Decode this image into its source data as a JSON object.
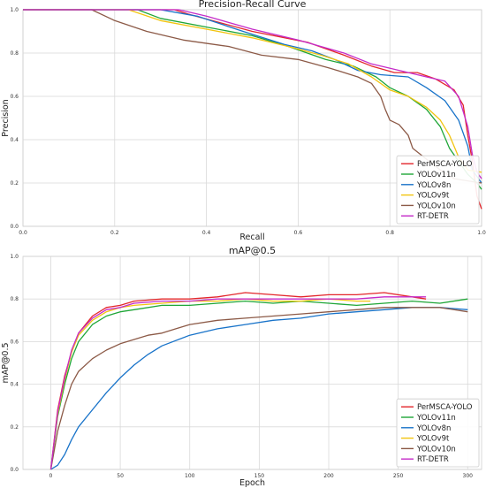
{
  "colors": {
    "PerMSCA-YOLO": "#e3262b",
    "YOLOv11n": "#1fa637",
    "YOLOv8n": "#1873c9",
    "YOLOv9t": "#f2c40f",
    "YOLOv10n": "#8c5a47",
    "RT-DETR": "#c52bc9"
  },
  "chart_data": [
    {
      "type": "line",
      "title": "Precision-Recall Curve",
      "xlabel": "Recall",
      "ylabel": "Precision",
      "xlim": [
        0,
        1
      ],
      "ylim": [
        0,
        1
      ],
      "xticks": [
        "0.0",
        "0.2",
        "0.4",
        "0.6",
        "0.8",
        "1.0"
      ],
      "yticks": [
        "0.0",
        "0.2",
        "0.4",
        "0.6",
        "0.8",
        "1.0"
      ],
      "grid": true,
      "legend": "bottom-right",
      "series": [
        {
          "name": "PerMSCA-YOLO",
          "points": [
            [
              0.0,
              1.0
            ],
            [
              0.33,
              1.0
            ],
            [
              0.36,
              0.98
            ],
            [
              0.5,
              0.9
            ],
            [
              0.62,
              0.85
            ],
            [
              0.7,
              0.79
            ],
            [
              0.76,
              0.74
            ],
            [
              0.81,
              0.71
            ],
            [
              0.86,
              0.71
            ],
            [
              0.9,
              0.68
            ],
            [
              0.94,
              0.63
            ],
            [
              0.96,
              0.56
            ],
            [
              0.97,
              0.42
            ],
            [
              0.98,
              0.3
            ],
            [
              0.99,
              0.14
            ],
            [
              1.0,
              0.08
            ]
          ]
        },
        {
          "name": "YOLOv11n",
          "points": [
            [
              0.0,
              1.0
            ],
            [
              0.25,
              1.0
            ],
            [
              0.3,
              0.96
            ],
            [
              0.4,
              0.92
            ],
            [
              0.5,
              0.88
            ],
            [
              0.58,
              0.83
            ],
            [
              0.66,
              0.77
            ],
            [
              0.72,
              0.74
            ],
            [
              0.77,
              0.69
            ],
            [
              0.8,
              0.64
            ],
            [
              0.84,
              0.6
            ],
            [
              0.88,
              0.54
            ],
            [
              0.91,
              0.46
            ],
            [
              0.93,
              0.36
            ],
            [
              0.95,
              0.3
            ],
            [
              0.97,
              0.24
            ],
            [
              0.99,
              0.2
            ],
            [
              1.0,
              0.17
            ]
          ]
        },
        {
          "name": "YOLOv8n",
          "points": [
            [
              0.0,
              1.0
            ],
            [
              0.3,
              1.0
            ],
            [
              0.38,
              0.97
            ],
            [
              0.48,
              0.9
            ],
            [
              0.57,
              0.84
            ],
            [
              0.63,
              0.81
            ],
            [
              0.68,
              0.77
            ],
            [
              0.73,
              0.72
            ],
            [
              0.78,
              0.7
            ],
            [
              0.84,
              0.69
            ],
            [
              0.88,
              0.64
            ],
            [
              0.92,
              0.58
            ],
            [
              0.95,
              0.49
            ],
            [
              0.97,
              0.37
            ],
            [
              0.98,
              0.26
            ],
            [
              1.0,
              0.2
            ]
          ]
        },
        {
          "name": "YOLOv9t",
          "points": [
            [
              0.0,
              1.0
            ],
            [
              0.23,
              1.0
            ],
            [
              0.3,
              0.95
            ],
            [
              0.4,
              0.91
            ],
            [
              0.5,
              0.87
            ],
            [
              0.58,
              0.83
            ],
            [
              0.65,
              0.79
            ],
            [
              0.71,
              0.75
            ],
            [
              0.76,
              0.69
            ],
            [
              0.8,
              0.63
            ],
            [
              0.84,
              0.6
            ],
            [
              0.88,
              0.55
            ],
            [
              0.91,
              0.49
            ],
            [
              0.93,
              0.42
            ],
            [
              0.95,
              0.32
            ],
            [
              0.97,
              0.26
            ],
            [
              1.0,
              0.25
            ]
          ]
        },
        {
          "name": "YOLOv10n",
          "points": [
            [
              0.0,
              1.0
            ],
            [
              0.15,
              1.0
            ],
            [
              0.2,
              0.95
            ],
            [
              0.27,
              0.9
            ],
            [
              0.35,
              0.86
            ],
            [
              0.45,
              0.83
            ],
            [
              0.52,
              0.79
            ],
            [
              0.6,
              0.77
            ],
            [
              0.67,
              0.73
            ],
            [
              0.73,
              0.69
            ],
            [
              0.76,
              0.66
            ],
            [
              0.78,
              0.6
            ],
            [
              0.79,
              0.54
            ],
            [
              0.8,
              0.49
            ],
            [
              0.82,
              0.47
            ],
            [
              0.84,
              0.42
            ],
            [
              0.85,
              0.36
            ],
            [
              0.88,
              0.31
            ],
            [
              0.91,
              0.26
            ],
            [
              0.94,
              0.22
            ],
            [
              0.97,
              0.21
            ],
            [
              1.0,
              0.2
            ]
          ]
        },
        {
          "name": "RT-DETR",
          "points": [
            [
              0.0,
              1.0
            ],
            [
              0.34,
              1.0
            ],
            [
              0.4,
              0.97
            ],
            [
              0.5,
              0.91
            ],
            [
              0.6,
              0.86
            ],
            [
              0.7,
              0.8
            ],
            [
              0.76,
              0.75
            ],
            [
              0.82,
              0.72
            ],
            [
              0.88,
              0.69
            ],
            [
              0.92,
              0.67
            ],
            [
              0.95,
              0.6
            ],
            [
              0.97,
              0.46
            ],
            [
              0.98,
              0.33
            ],
            [
              0.99,
              0.25
            ],
            [
              1.0,
              0.22
            ]
          ]
        }
      ]
    },
    {
      "type": "line",
      "title": "mAP@0.5",
      "xlabel": "Epoch",
      "ylabel": "mAP@0.5",
      "xlim": [
        -20,
        310
      ],
      "ylim": [
        0,
        1
      ],
      "xticks": [
        "0",
        "50",
        "100",
        "150",
        "200",
        "250",
        "300"
      ],
      "yticks": [
        "0.0",
        "0.2",
        "0.4",
        "0.6",
        "0.8",
        "1.0"
      ],
      "grid": true,
      "legend": "bottom-right",
      "series": [
        {
          "name": "PerMSCA-YOLO",
          "points": [
            [
              0,
              0.0
            ],
            [
              5,
              0.28
            ],
            [
              10,
              0.44
            ],
            [
              15,
              0.55
            ],
            [
              20,
              0.64
            ],
            [
              30,
              0.72
            ],
            [
              40,
              0.76
            ],
            [
              50,
              0.77
            ],
            [
              60,
              0.79
            ],
            [
              80,
              0.8
            ],
            [
              100,
              0.8
            ],
            [
              120,
              0.81
            ],
            [
              140,
              0.83
            ],
            [
              160,
              0.82
            ],
            [
              180,
              0.81
            ],
            [
              200,
              0.82
            ],
            [
              220,
              0.82
            ],
            [
              240,
              0.83
            ],
            [
              260,
              0.81
            ],
            [
              270,
              0.8
            ]
          ]
        },
        {
          "name": "YOLOv11n",
          "points": [
            [
              0,
              0.0
            ],
            [
              5,
              0.25
            ],
            [
              10,
              0.4
            ],
            [
              15,
              0.52
            ],
            [
              20,
              0.6
            ],
            [
              30,
              0.68
            ],
            [
              40,
              0.72
            ],
            [
              50,
              0.74
            ],
            [
              60,
              0.75
            ],
            [
              80,
              0.77
            ],
            [
              100,
              0.77
            ],
            [
              120,
              0.78
            ],
            [
              140,
              0.79
            ],
            [
              160,
              0.78
            ],
            [
              180,
              0.79
            ],
            [
              200,
              0.78
            ],
            [
              220,
              0.77
            ],
            [
              240,
              0.78
            ],
            [
              260,
              0.79
            ],
            [
              280,
              0.78
            ],
            [
              300,
              0.8
            ]
          ]
        },
        {
          "name": "YOLOv8n",
          "points": [
            [
              0,
              0.0
            ],
            [
              5,
              0.02
            ],
            [
              10,
              0.07
            ],
            [
              15,
              0.14
            ],
            [
              20,
              0.2
            ],
            [
              30,
              0.28
            ],
            [
              40,
              0.36
            ],
            [
              50,
              0.43
            ],
            [
              60,
              0.49
            ],
            [
              70,
              0.54
            ],
            [
              80,
              0.58
            ],
            [
              100,
              0.63
            ],
            [
              120,
              0.66
            ],
            [
              140,
              0.68
            ],
            [
              160,
              0.7
            ],
            [
              180,
              0.71
            ],
            [
              200,
              0.73
            ],
            [
              220,
              0.74
            ],
            [
              240,
              0.75
            ],
            [
              260,
              0.76
            ],
            [
              280,
              0.76
            ],
            [
              300,
              0.75
            ]
          ]
        },
        {
          "name": "YOLOv9t",
          "points": [
            [
              0,
              0.0
            ],
            [
              5,
              0.26
            ],
            [
              10,
              0.42
            ],
            [
              15,
              0.55
            ],
            [
              20,
              0.63
            ],
            [
              30,
              0.7
            ],
            [
              40,
              0.74
            ],
            [
              50,
              0.76
            ],
            [
              60,
              0.77
            ],
            [
              80,
              0.78
            ],
            [
              100,
              0.79
            ],
            [
              120,
              0.79
            ],
            [
              140,
              0.8
            ],
            [
              160,
              0.79
            ],
            [
              180,
              0.79
            ],
            [
              200,
              0.8
            ],
            [
              220,
              0.79
            ],
            [
              230,
              0.79
            ]
          ]
        },
        {
          "name": "YOLOv10n",
          "points": [
            [
              0,
              0.0
            ],
            [
              5,
              0.18
            ],
            [
              10,
              0.3
            ],
            [
              15,
              0.4
            ],
            [
              20,
              0.46
            ],
            [
              30,
              0.52
            ],
            [
              40,
              0.56
            ],
            [
              50,
              0.59
            ],
            [
              60,
              0.61
            ],
            [
              70,
              0.63
            ],
            [
              80,
              0.64
            ],
            [
              90,
              0.66
            ],
            [
              100,
              0.68
            ],
            [
              120,
              0.7
            ],
            [
              140,
              0.71
            ],
            [
              160,
              0.72
            ],
            [
              180,
              0.73
            ],
            [
              200,
              0.74
            ],
            [
              220,
              0.75
            ],
            [
              240,
              0.76
            ],
            [
              260,
              0.76
            ],
            [
              280,
              0.76
            ],
            [
              300,
              0.74
            ]
          ]
        },
        {
          "name": "RT-DETR",
          "points": [
            [
              0,
              0.0
            ],
            [
              5,
              0.27
            ],
            [
              10,
              0.43
            ],
            [
              15,
              0.56
            ],
            [
              20,
              0.64
            ],
            [
              30,
              0.71
            ],
            [
              40,
              0.75
            ],
            [
              50,
              0.76
            ],
            [
              60,
              0.78
            ],
            [
              80,
              0.79
            ],
            [
              100,
              0.79
            ],
            [
              120,
              0.8
            ],
            [
              140,
              0.8
            ],
            [
              160,
              0.8
            ],
            [
              180,
              0.8
            ],
            [
              200,
              0.8
            ],
            [
              220,
              0.8
            ],
            [
              240,
              0.81
            ],
            [
              260,
              0.81
            ],
            [
              270,
              0.81
            ]
          ]
        }
      ]
    }
  ]
}
